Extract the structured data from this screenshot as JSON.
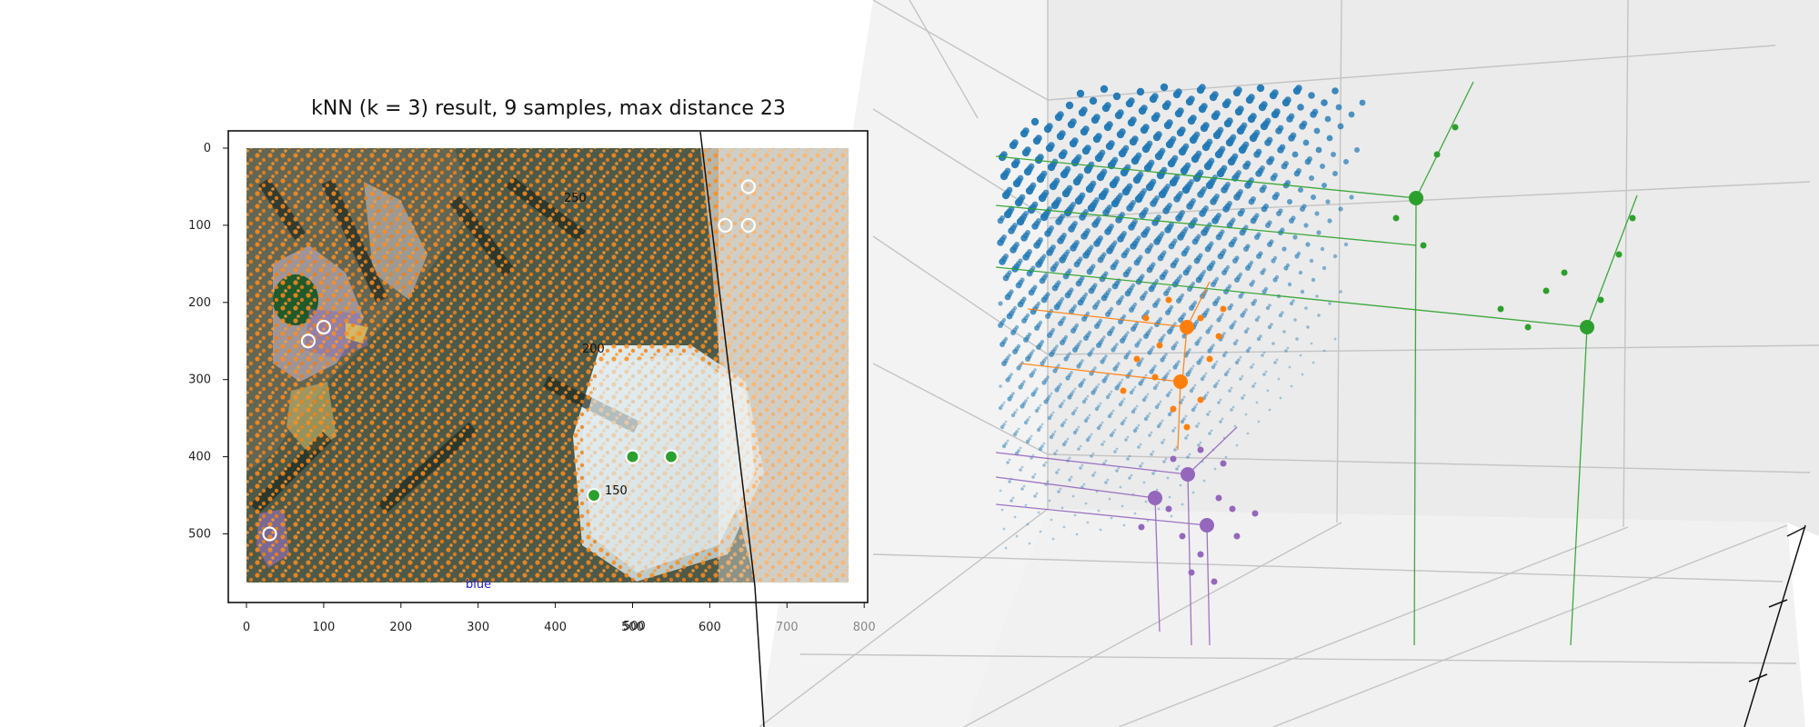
{
  "chart_data": {
    "type": "scatter",
    "title": "kNN (k = 3) result, 9 samples, max distance 23",
    "image_panel": {
      "x_ticks": [
        0,
        100,
        200,
        300,
        400,
        500,
        600,
        700,
        800
      ],
      "y_ticks": [
        0,
        100,
        200,
        300,
        400,
        500
      ],
      "xlim": [
        0,
        780
      ],
      "ylim": [
        560,
        0
      ],
      "contour_labels": [
        "250",
        "200",
        "150"
      ],
      "overlay_label_x": "500",
      "overlay_label_blue": "blue"
    },
    "samples": [
      {
        "x": 650,
        "y": 50,
        "cls": "orange"
      },
      {
        "x": 620,
        "y": 100,
        "cls": "orange"
      },
      {
        "x": 650,
        "y": 100,
        "cls": "orange"
      },
      {
        "x": 100,
        "y": 232,
        "cls": "purple"
      },
      {
        "x": 80,
        "y": 250,
        "cls": "purple"
      },
      {
        "x": 30,
        "y": 500,
        "cls": "purple"
      },
      {
        "x": 500,
        "y": 400,
        "cls": "green"
      },
      {
        "x": 550,
        "y": 400,
        "cls": "green"
      },
      {
        "x": 450,
        "y": 450,
        "cls": "green"
      }
    ],
    "series": [
      {
        "cls": "green"
      },
      {
        "cls": "orange"
      },
      {
        "cls": "purple"
      }
    ],
    "grid": true
  },
  "colors": {
    "blue": "#1f77b4",
    "orange": "#ff7f0e",
    "green": "#2ca02c",
    "purple": "#9467bd"
  }
}
